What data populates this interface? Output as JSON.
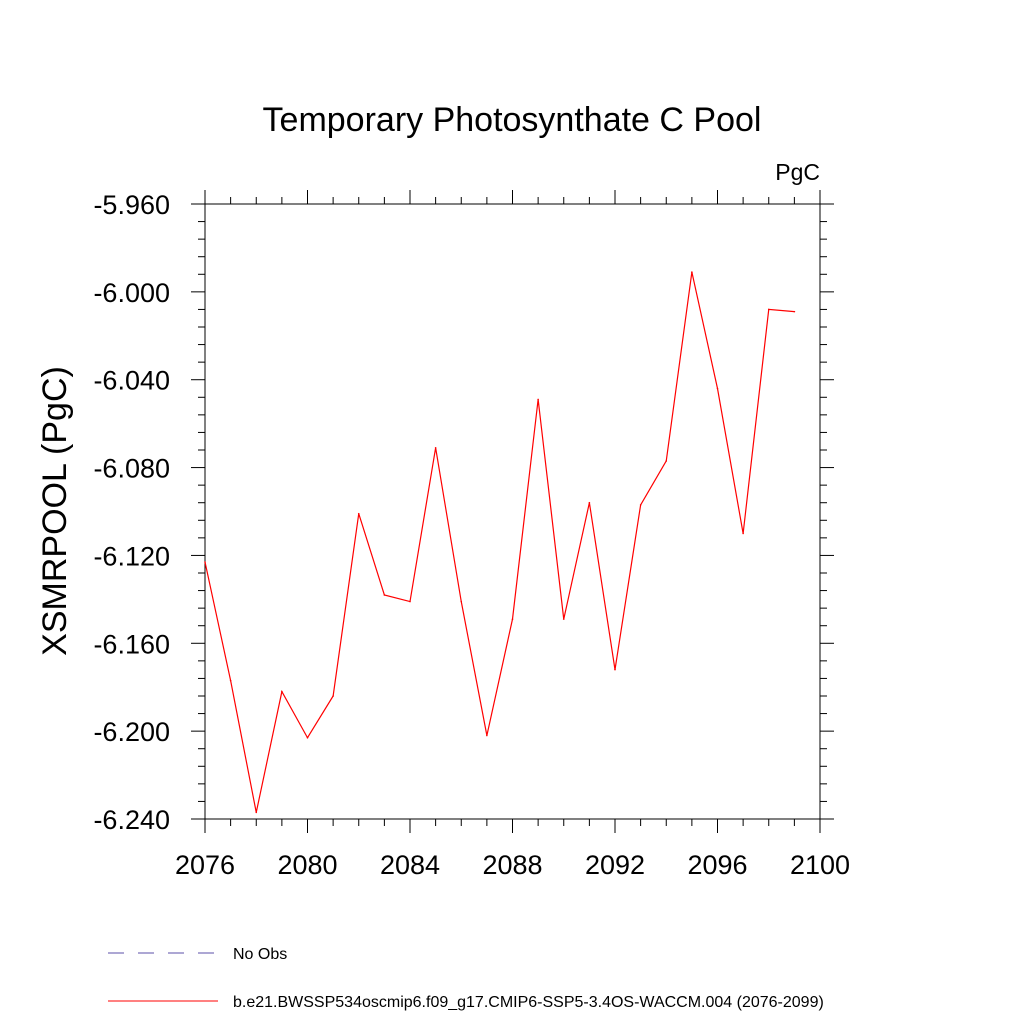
{
  "chart_data": {
    "type": "line",
    "title": "Temporary Photosynthate C Pool",
    "units_label": "PgC",
    "xlabel": "",
    "ylabel": "XSMRPOOL  (PgC)",
    "xlim": [
      2076,
      2100
    ],
    "ylim": [
      -6.24,
      -5.96
    ],
    "x_ticks": [
      2076,
      2080,
      2084,
      2088,
      2092,
      2096,
      2100
    ],
    "x_tick_labels": [
      "2076",
      "2080",
      "2084",
      "2088",
      "2092",
      "2096",
      "2100"
    ],
    "y_ticks": [
      -6.24,
      -6.2,
      -6.16,
      -6.12,
      -6.08,
      -6.04,
      -6.0,
      -5.96
    ],
    "y_tick_labels": [
      "-6.240",
      "-6.200",
      "-6.160",
      "-6.120",
      "-6.080",
      "-6.040",
      "-6.000",
      "-5.960"
    ],
    "grid": false,
    "legend_position": "bottom-left, below plot",
    "series": [
      {
        "name": "No Obs",
        "style": "dashed",
        "color": "#5b4fa8",
        "x": [],
        "values": []
      },
      {
        "name": "b.e21.BWSSP534oscmip6.f09_g17.CMIP6-SSP5-3.4OS-WACCM.004 (2076-2099)",
        "style": "solid",
        "color": "#ff0000",
        "x": [
          2076,
          2077,
          2078,
          2079,
          2080,
          2081,
          2082,
          2083,
          2084,
          2085,
          2086,
          2087,
          2088,
          2089,
          2090,
          2091,
          2092,
          2093,
          2094,
          2095,
          2096,
          2097,
          2098,
          2099
        ],
        "values": [
          -6.123,
          -6.177,
          -6.237,
          -6.182,
          -6.203,
          -6.184,
          -6.101,
          -6.138,
          -6.141,
          -6.071,
          -6.141,
          -6.202,
          -6.149,
          -6.049,
          -6.149,
          -6.096,
          -6.172,
          -6.097,
          -6.077,
          -5.991,
          -6.044,
          -6.11,
          -6.008,
          -6.009
        ]
      }
    ]
  }
}
